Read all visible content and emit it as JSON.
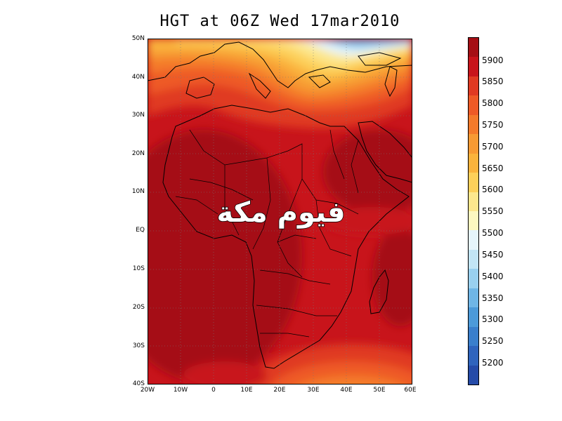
{
  "title": "HGT at 06Z Wed 17mar2010",
  "lat_labels": [
    "50N",
    "40N",
    "30N",
    "20N",
    "10N",
    "EQ",
    "10S",
    "20S",
    "30S",
    "40S"
  ],
  "lon_labels": [
    "20W",
    "10W",
    "0",
    "10E",
    "20E",
    "30E",
    "40E",
    "50E",
    "60E"
  ],
  "colorbar": {
    "labels": [
      "5900",
      "5850",
      "5800",
      "5750",
      "5700",
      "5650",
      "5600",
      "5550",
      "5500",
      "5450",
      "5400",
      "5350",
      "5300",
      "5250",
      "5200"
    ],
    "colors_top_to_bottom": [
      "#a50f15",
      "#c8141b",
      "#e03a22",
      "#ee5a26",
      "#f47a2a",
      "#f79a33",
      "#fab33c",
      "#fdd05a",
      "#fde78d",
      "#fdf8c0",
      "#e6f5fb",
      "#c2e5f5",
      "#99d0ef",
      "#6fb6e6",
      "#4c9ad9",
      "#3a7fcc",
      "#2f64bd",
      "#254ba8"
    ]
  },
  "chart_data": {
    "type": "heatmap",
    "title": "HGT at 06Z Wed 17mar2010",
    "variable": "HGT",
    "lon_range": [
      -20,
      60
    ],
    "lat_range": [
      -40,
      50
    ],
    "colorbar_levels": [
      5200,
      5250,
      5300,
      5350,
      5400,
      5450,
      5500,
      5550,
      5600,
      5650,
      5700,
      5750,
      5800,
      5850,
      5900
    ],
    "grid": "dotted"
  },
  "watermark": {
    "text": "فيوم مكة"
  }
}
